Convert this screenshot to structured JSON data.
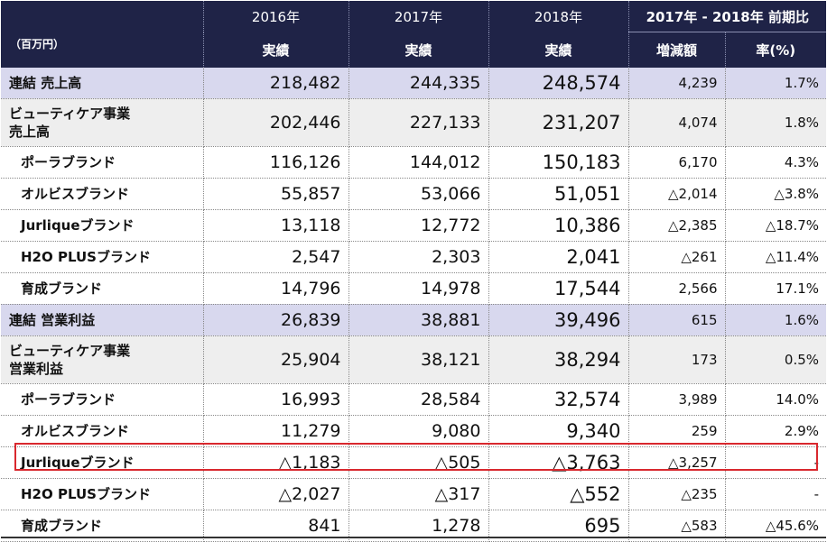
{
  "header": {
    "unit": "（百万円）",
    "years": [
      "2016年",
      "2017年",
      "2018年"
    ],
    "actual": "実績",
    "diff_period": "2017年 - 2018年 前期比",
    "diff_amount": "増減額",
    "diff_rate": "率(%)"
  },
  "rows": [
    {
      "label": "連結 売上高",
      "v2016": "218,482",
      "v2017": "244,335",
      "v2018": "248,574",
      "diff": "4,239",
      "rate": "1.7%"
    },
    {
      "label": "ビューティケア事業\n売上高",
      "v2016": "202,446",
      "v2017": "227,133",
      "v2018": "231,207",
      "diff": "4,074",
      "rate": "1.8%"
    },
    {
      "label": "ポーラブランド",
      "v2016": "116,126",
      "v2017": "144,012",
      "v2018": "150,183",
      "diff": "6,170",
      "rate": "4.3%"
    },
    {
      "label": "オルビスブランド",
      "v2016": "55,857",
      "v2017": "53,066",
      "v2018": "51,051",
      "diff": "△2,014",
      "rate": "△3.8%"
    },
    {
      "label": "Jurliqueブランド",
      "v2016": "13,118",
      "v2017": "12,772",
      "v2018": "10,386",
      "diff": "△2,385",
      "rate": "△18.7%"
    },
    {
      "label": "H2O PLUSブランド",
      "v2016": "2,547",
      "v2017": "2,303",
      "v2018": "2,041",
      "diff": "△261",
      "rate": "△11.4%"
    },
    {
      "label": "育成ブランド",
      "v2016": "14,796",
      "v2017": "14,978",
      "v2018": "17,544",
      "diff": "2,566",
      "rate": "17.1%"
    },
    {
      "label": "連結 営業利益",
      "v2016": "26,839",
      "v2017": "38,881",
      "v2018": "39,496",
      "diff": "615",
      "rate": "1.6%"
    },
    {
      "label": "ビューティケア事業\n営業利益",
      "v2016": "25,904",
      "v2017": "38,121",
      "v2018": "38,294",
      "diff": "173",
      "rate": "0.5%"
    },
    {
      "label": "ポーラブランド",
      "v2016": "16,993",
      "v2017": "28,584",
      "v2018": "32,574",
      "diff": "3,989",
      "rate": "14.0%"
    },
    {
      "label": "オルビスブランド",
      "v2016": "11,279",
      "v2017": "9,080",
      "v2018": "9,340",
      "diff": "259",
      "rate": "2.9%"
    },
    {
      "label": "Jurliqueブランド",
      "v2016": "△1,183",
      "v2017": "△505",
      "v2018": "△3,763",
      "diff": "△3,257",
      "rate": "-"
    },
    {
      "label": "H2O PLUSブランド",
      "v2016": "△2,027",
      "v2017": "△317",
      "v2018": "△552",
      "diff": "△235",
      "rate": "-"
    },
    {
      "label": "育成ブランド",
      "v2016": "841",
      "v2017": "1,278",
      "v2018": "695",
      "diff": "△583",
      "rate": "△45.6%"
    }
  ]
}
